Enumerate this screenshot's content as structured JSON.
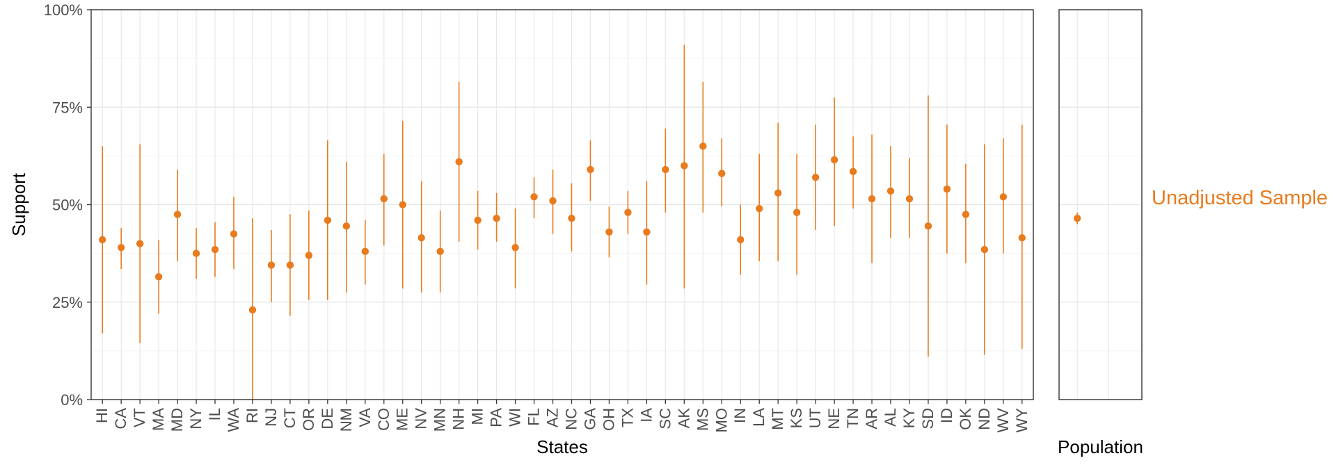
{
  "chart_data": {
    "type": "scatter",
    "subtype": "point-range",
    "color": "#E87B1E",
    "ylabel": "Support",
    "ylim": [
      0,
      100
    ],
    "yticks": [
      "0%",
      "25%",
      "50%",
      "75%",
      "100%"
    ],
    "grid": true,
    "panels": [
      {
        "name": "states",
        "xlabel": "States",
        "categories": [
          "HI",
          "CA",
          "VT",
          "MA",
          "MD",
          "NY",
          "IL",
          "WA",
          "RI",
          "NJ",
          "CT",
          "OR",
          "DE",
          "NM",
          "VA",
          "CO",
          "ME",
          "NV",
          "MN",
          "NH",
          "MI",
          "PA",
          "WI",
          "FL",
          "AZ",
          "NC",
          "GA",
          "OH",
          "TX",
          "IA",
          "SC",
          "AK",
          "MS",
          "MO",
          "IN",
          "LA",
          "MT",
          "KS",
          "UT",
          "NE",
          "TN",
          "AR",
          "AL",
          "KY",
          "SD",
          "ID",
          "OK",
          "ND",
          "WV",
          "WY"
        ],
        "estimate": [
          41,
          39,
          40,
          31.5,
          47.5,
          37.5,
          38.5,
          42.5,
          23,
          34.5,
          34.5,
          37,
          46,
          44.5,
          38,
          51.5,
          50,
          41.5,
          38,
          61,
          46,
          46.5,
          39,
          52,
          51,
          46.5,
          59,
          43,
          48,
          43,
          59,
          60,
          65,
          58,
          41,
          49,
          53,
          48,
          57,
          61.5,
          58.5,
          51.5,
          53.5,
          51.5,
          44.5,
          54,
          47.5,
          38.5,
          52,
          41.5
        ],
        "lower": [
          17,
          33.5,
          14.5,
          22,
          35.5,
          31,
          31.5,
          33.5,
          0,
          25,
          21.5,
          25.5,
          25.5,
          27.5,
          29.5,
          39.5,
          28.5,
          27.5,
          27.5,
          40.5,
          38.5,
          40.5,
          28.5,
          46.5,
          42.5,
          38,
          51,
          36.5,
          42.5,
          29.5,
          48,
          28.5,
          48,
          49.5,
          32,
          35.5,
          35.5,
          32,
          43.5,
          44.5,
          49,
          35,
          41.5,
          41.5,
          11,
          37.5,
          35,
          11.5,
          37.5,
          13
        ],
        "upper": [
          65,
          44,
          65.5,
          41,
          59,
          44,
          45.5,
          52,
          46.5,
          43.5,
          47.5,
          48.5,
          66.5,
          61,
          46,
          63,
          71.5,
          56,
          48.5,
          81.5,
          53.5,
          53,
          49,
          57,
          59,
          55.5,
          66.5,
          49.5,
          53.5,
          56,
          69.5,
          91,
          81.5,
          67,
          50,
          63,
          71,
          63,
          70.5,
          77.5,
          67.5,
          68,
          65,
          62,
          78,
          70.5,
          60.5,
          65.5,
          67,
          70.5
        ]
      },
      {
        "name": "population",
        "xlabel": "Population",
        "estimate": [
          46.5
        ],
        "lower": [
          45
        ],
        "upper": [
          48
        ]
      }
    ],
    "annotations": [
      {
        "text": "Unadjusted Sample",
        "color": "#E87B1E"
      }
    ]
  }
}
